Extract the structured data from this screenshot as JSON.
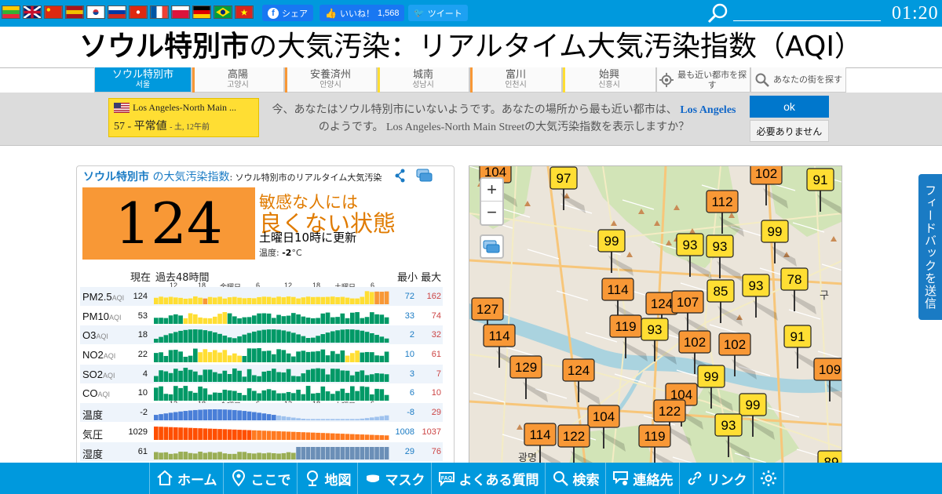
{
  "topbar": {
    "flags": [
      "Myanmar",
      "English",
      "Chinese",
      "Spanish",
      "Korean",
      "Russian",
      "Hong Kong",
      "French",
      "Polish",
      "German",
      "Portuguese",
      "Vietnamese"
    ],
    "share_label": "シェア",
    "like_label": "いいね！",
    "like_count": "1,568",
    "tweet_label": "ツイート",
    "search_placeholder": "",
    "clock": "01:20"
  },
  "title": {
    "city": "ソウル特別市",
    "rest": "の大気汚染：リアルタイム大気汚染指数（AQI）"
  },
  "tabs": [
    {
      "name": "ソウル特別市",
      "native": "서울",
      "active": true,
      "color": ""
    },
    {
      "name": "高陽",
      "native": "고양시",
      "active": false,
      "color": "#f89836"
    },
    {
      "name": "安養済州",
      "native": "안양시",
      "active": false,
      "color": "#f89836"
    },
    {
      "name": "城南",
      "native": "성남시",
      "active": false,
      "color": "#ffde33"
    },
    {
      "name": "富川",
      "native": "인천시",
      "active": false,
      "color": "#f89836"
    },
    {
      "name": "始興",
      "native": "신흥시",
      "active": false,
      "color": "#ffde33"
    }
  ],
  "tools": {
    "nearest_label": "最も近い都市を探す",
    "search_label": "あなたの街を探す"
  },
  "banner": {
    "station_name": "Los Angeles-North Main ...",
    "station_aqi": "57",
    "station_level": "平常値",
    "station_time": "- 土, 12午前",
    "message_part1": "今、あなたはソウル特別市にいないようです。あなたの場所から最も近い都市は、",
    "message_link": "Los Angeles",
    "message_part2": "のようです。 Los Angeles-North Main Streetの大気汚染指数を表示しますか？",
    "ok_label": "ok",
    "no_label": "必要ありません"
  },
  "card": {
    "head_city": "ソウル特別市",
    "head_suffix": "の大気汚染指数",
    "head_sub": ": ソウル特別市のリアルタイム大気汚染",
    "aqi": "124",
    "level_line1": "敏感な人には",
    "level_line2": "良くない状態",
    "updated": "土曜日10時に更新",
    "temp_label": "温度:",
    "temp_value": "-2",
    "temp_unit": "°C",
    "hdr_current": "現在",
    "hdr_past": "過去48時間",
    "hdr_minmax": "最小 最大",
    "tick_labels": [
      "12",
      "18",
      "金曜日",
      "6",
      "12",
      "18",
      "土曜日",
      "6"
    ],
    "rows": [
      {
        "label": "PM2.5",
        "unit": "AQI",
        "current": "124",
        "min": "72",
        "max": "162"
      },
      {
        "label": "PM10",
        "unit": "AQI",
        "current": "53",
        "min": "33",
        "max": "74"
      },
      {
        "label": "O3",
        "unit": "AQI",
        "current": "18",
        "min": "2",
        "max": "32"
      },
      {
        "label": "NO2",
        "unit": "AQI",
        "current": "22",
        "min": "10",
        "max": "61"
      },
      {
        "label": "SO2",
        "unit": "AQI",
        "current": "4",
        "min": "3",
        "max": "7"
      },
      {
        "label": "CO",
        "unit": "AQI",
        "current": "10",
        "min": "6",
        "max": "10"
      },
      {
        "label": "温度",
        "unit": "",
        "current": "-2",
        "min": "-8",
        "max": "29"
      },
      {
        "label": "気圧",
        "unit": "",
        "current": "1029",
        "min": "1008",
        "max": "1037"
      },
      {
        "label": "湿度",
        "unit": "",
        "current": "61",
        "min": "29",
        "max": "76"
      }
    ]
  },
  "map": {
    "zoom_in": "+",
    "zoom_out": "−",
    "markers": [
      {
        "v": "104"
      },
      {
        "v": "97"
      },
      {
        "v": "102"
      },
      {
        "v": "91"
      },
      {
        "v": "112"
      },
      {
        "v": "99"
      },
      {
        "v": "99"
      },
      {
        "v": "93"
      },
      {
        "v": "93"
      },
      {
        "v": "93"
      },
      {
        "v": "78"
      },
      {
        "v": "114"
      },
      {
        "v": "85"
      },
      {
        "v": "124"
      },
      {
        "v": "107"
      },
      {
        "v": "127"
      },
      {
        "v": "119"
      },
      {
        "v": "93"
      },
      {
        "v": "114"
      },
      {
        "v": "102"
      },
      {
        "v": "102"
      },
      {
        "v": "91"
      },
      {
        "v": "129"
      },
      {
        "v": "124"
      },
      {
        "v": "109"
      },
      {
        "v": "99"
      },
      {
        "v": "104"
      },
      {
        "v": "99"
      },
      {
        "v": "104"
      },
      {
        "v": "122"
      },
      {
        "v": "119"
      },
      {
        "v": "93"
      },
      {
        "v": "114"
      },
      {
        "v": "122"
      },
      {
        "v": "89"
      }
    ],
    "place_labels": [
      "광명",
      "구"
    ]
  },
  "feedback_label": "フィードバックを送信",
  "bottom_nav": [
    {
      "icon": "home-icon",
      "label": "ホーム"
    },
    {
      "icon": "pin-icon",
      "label": "ここで"
    },
    {
      "icon": "map-icon",
      "label": "地図"
    },
    {
      "icon": "mask-icon",
      "label": "マスク"
    },
    {
      "icon": "faq-icon",
      "label": "よくある質問"
    },
    {
      "icon": "search-icon",
      "label": "検索"
    },
    {
      "icon": "contact-icon",
      "label": "連絡先"
    },
    {
      "icon": "link-icon",
      "label": "リンク"
    },
    {
      "icon": "gear-icon",
      "label": ""
    }
  ],
  "colors": {
    "brand": "#0099dd",
    "good": "#009966",
    "moderate": "#ffde33",
    "sensitive": "#f89836",
    "unhealthy": "#cc0033"
  }
}
